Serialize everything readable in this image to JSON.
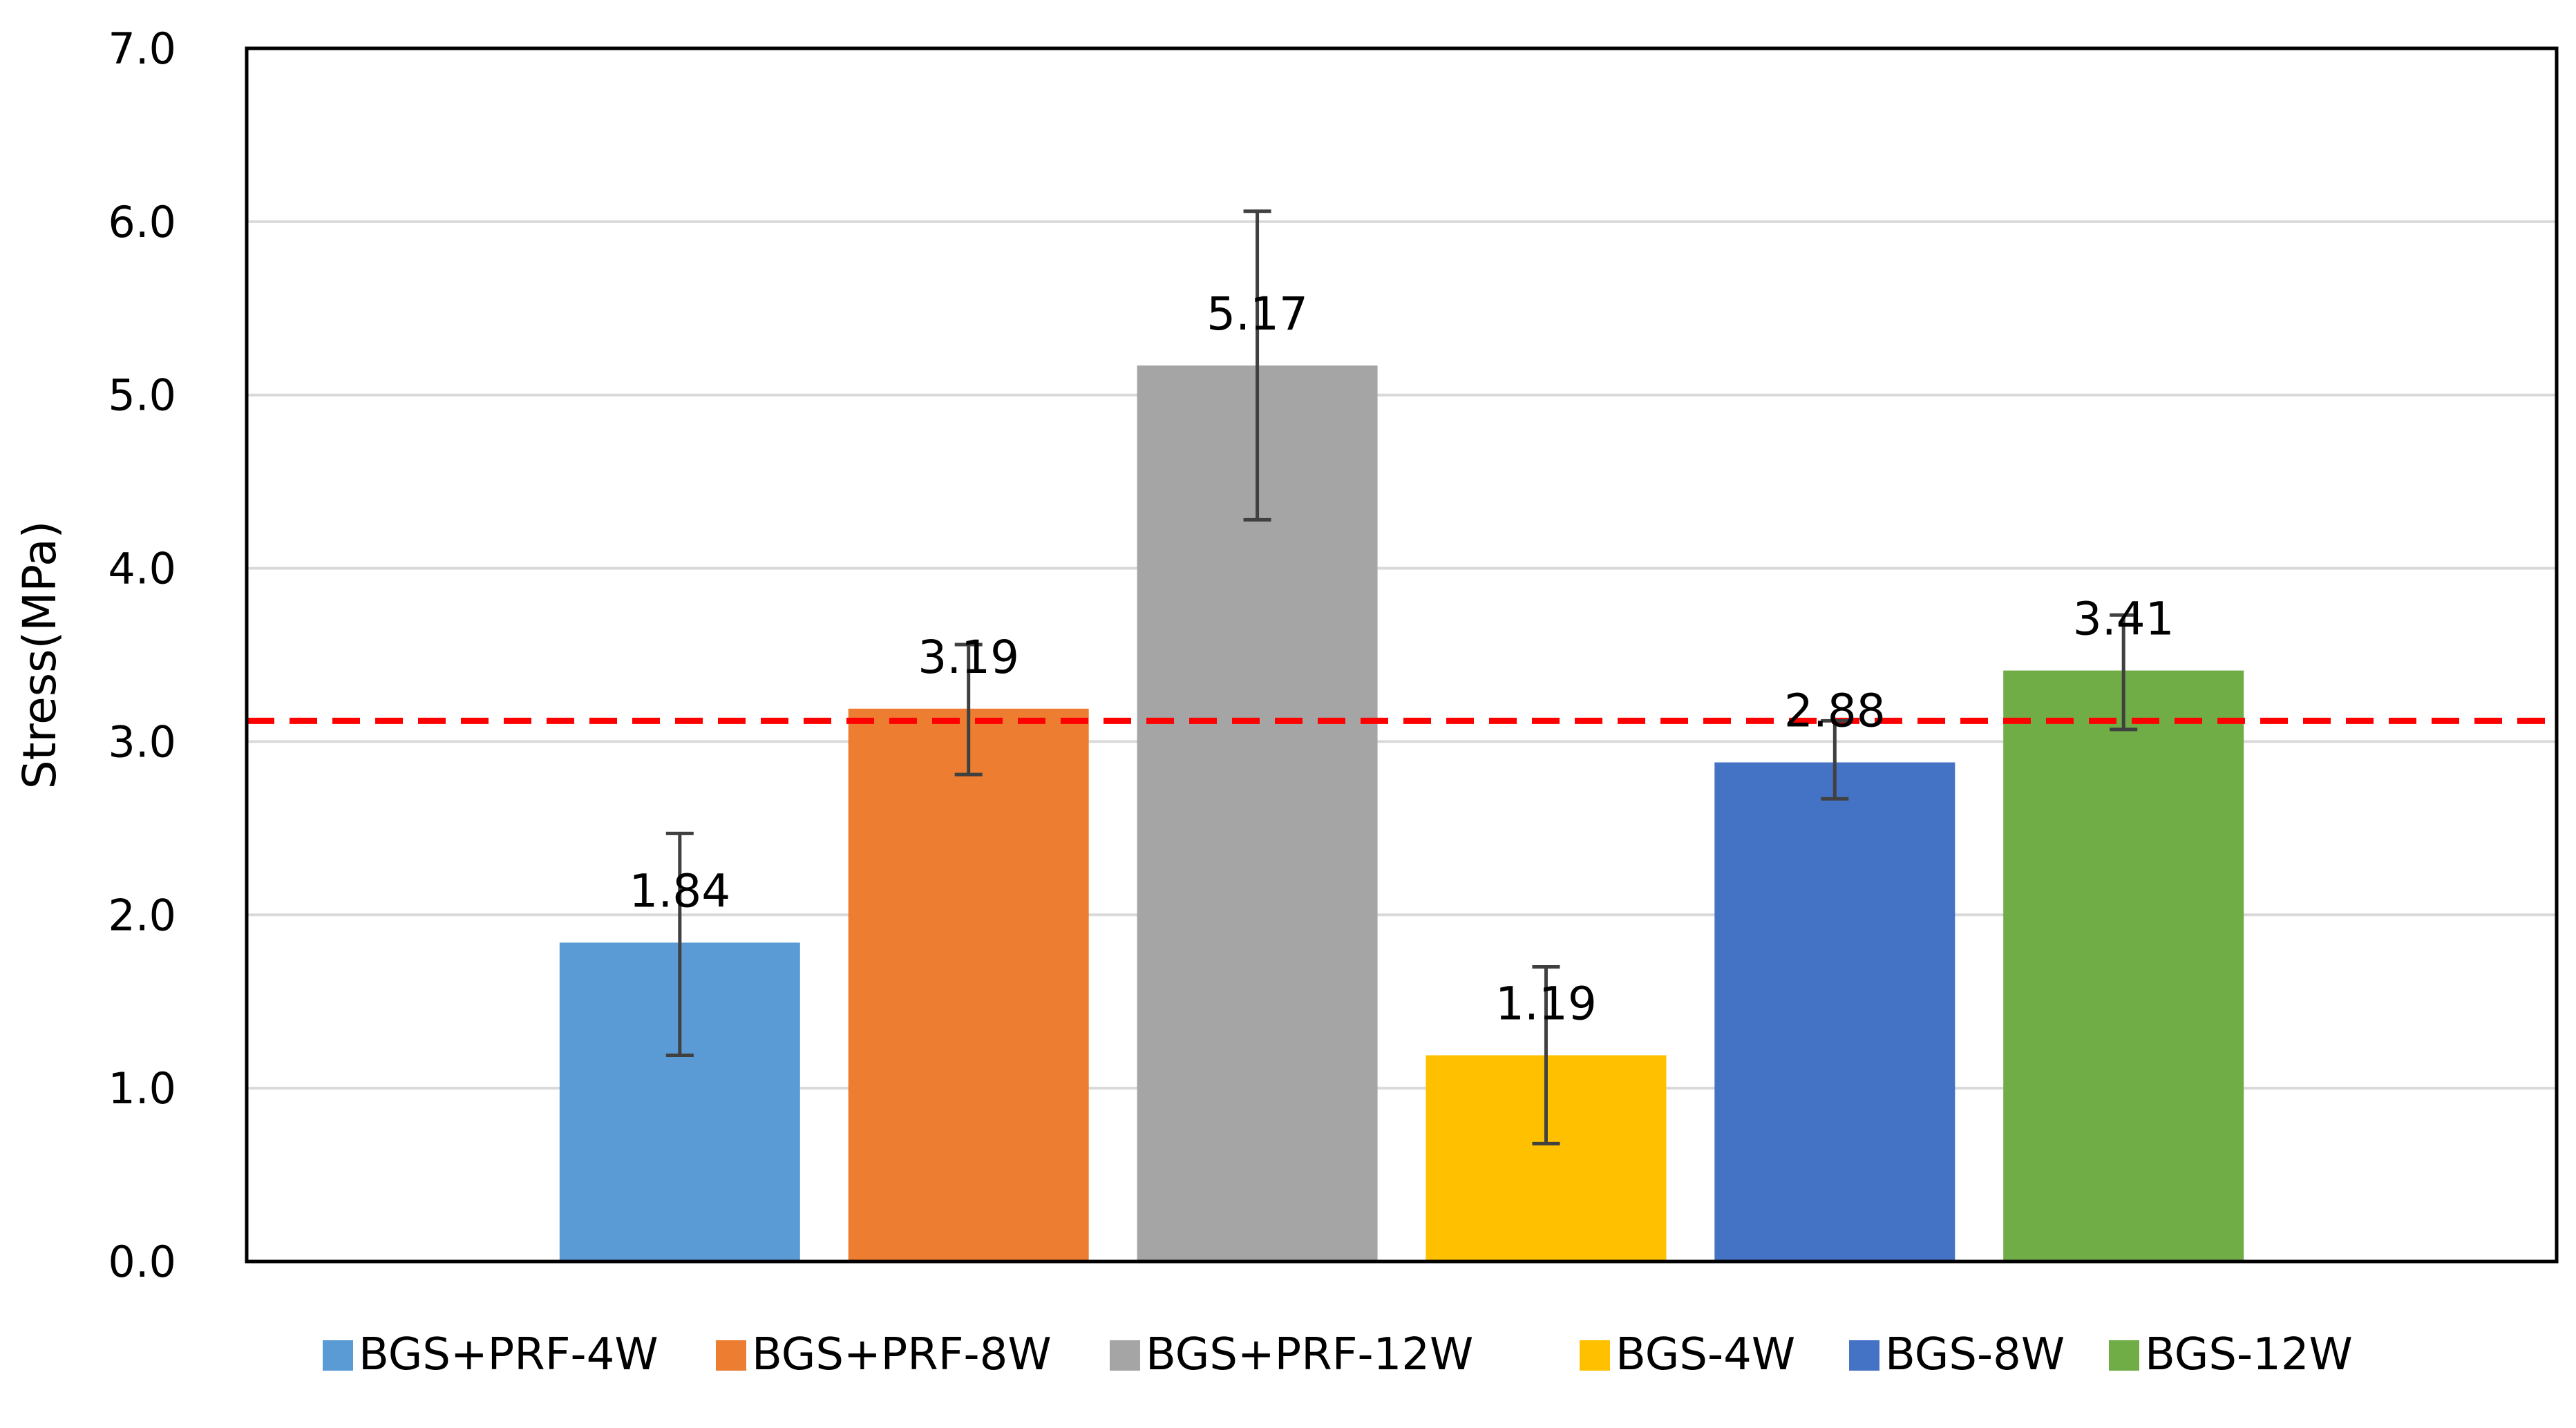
{
  "chart_data": {
    "type": "bar",
    "title": "",
    "xlabel": "",
    "ylabel": "Stress(MPa)",
    "ylim": [
      0,
      7.0
    ],
    "y_ticks": [
      "0.0",
      "1.0",
      "2.0",
      "3.0",
      "4.0",
      "5.0",
      "6.0",
      "7.0"
    ],
    "grid": true,
    "legend_position": "bottom",
    "reference_line": {
      "value": 3.12,
      "color": "#FF0000",
      "style": "dashed"
    },
    "categories": [
      "BGS+PRF-4W",
      "BGS+PRF-8W",
      "BGS+PRF-12W",
      "BGS-4W",
      "BGS-8W",
      "BGS-12W"
    ],
    "values": [
      1.84,
      3.19,
      5.17,
      1.19,
      2.88,
      3.41
    ],
    "value_labels": [
      "1.84",
      "3.19",
      "5.17",
      "1.19",
      "2.88",
      "3.41"
    ],
    "error_low": [
      1.19,
      2.81,
      4.28,
      0.68,
      2.67,
      3.07
    ],
    "error_high": [
      2.47,
      3.56,
      6.06,
      1.7,
      3.12,
      3.73
    ],
    "colors": [
      "#5B9BD5",
      "#ED7D31",
      "#A5A5A5",
      "#FFC000",
      "#4472C4",
      "#70AD47"
    ]
  }
}
